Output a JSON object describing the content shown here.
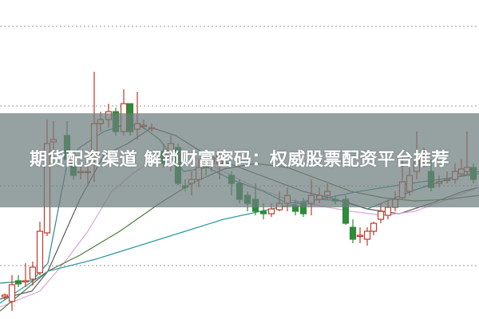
{
  "title": "期货配资渠道 解锁财富密码：权威股票配资平台推荐",
  "colors": {
    "up": "#c0392b",
    "down": "#2e8b3a",
    "grid": "#999999",
    "banner": "#6e7d7d"
  },
  "chart_data": {
    "type": "candlestick",
    "ylim": [
      0,
      400
    ],
    "grid": true,
    "gridlines": [
      367,
      267,
      167,
      67
    ],
    "candles": [
      {
        "x": 6,
        "o": 28,
        "c": 30,
        "h": 32,
        "l": 24
      },
      {
        "x": 15,
        "o": 22,
        "c": 43,
        "h": 55,
        "l": 10
      },
      {
        "x": 23,
        "o": 48,
        "c": 44,
        "h": 55,
        "l": 40
      },
      {
        "x": 32,
        "o": 48,
        "c": 48,
        "h": 70,
        "l": 40
      },
      {
        "x": 41,
        "o": 50,
        "c": 65,
        "h": 72,
        "l": 42
      },
      {
        "x": 50,
        "o": 58,
        "c": 110,
        "h": 122,
        "l": 55
      },
      {
        "x": 59,
        "o": 108,
        "c": 220,
        "h": 250,
        "l": 104
      },
      {
        "x": 67,
        "o": 222,
        "c": 225,
        "h": 248,
        "l": 200
      },
      {
        "x": 84,
        "o": 230,
        "c": 200,
        "h": 248,
        "l": 195
      },
      {
        "x": 92,
        "o": 197,
        "c": 180,
        "h": 205,
        "l": 175
      },
      {
        "x": 101,
        "o": 185,
        "c": 185,
        "h": 195,
        "l": 175
      },
      {
        "x": 110,
        "o": 185,
        "c": 185,
        "h": 200,
        "l": 170
      },
      {
        "x": 118,
        "o": 200,
        "c": 245,
        "h": 310,
        "l": 172
      },
      {
        "x": 126,
        "o": 245,
        "c": 250,
        "h": 260,
        "l": 235
      },
      {
        "x": 136,
        "o": 250,
        "c": 260,
        "h": 270,
        "l": 240
      },
      {
        "x": 145,
        "o": 260,
        "c": 235,
        "h": 265,
        "l": 230
      },
      {
        "x": 155,
        "o": 235,
        "c": 270,
        "h": 288,
        "l": 230
      },
      {
        "x": 163,
        "o": 270,
        "c": 235,
        "h": 270,
        "l": 230
      },
      {
        "x": 172,
        "o": 238,
        "c": 245,
        "h": 285,
        "l": 225
      },
      {
        "x": 180,
        "o": 243,
        "c": 243,
        "h": 250,
        "l": 238
      },
      {
        "x": 190,
        "o": 240,
        "c": 240,
        "h": 245,
        "l": 235
      },
      {
        "x": 205,
        "o": 210,
        "c": 195,
        "h": 220,
        "l": 190
      },
      {
        "x": 214,
        "o": 200,
        "c": 220,
        "h": 230,
        "l": 185
      },
      {
        "x": 223,
        "o": 215,
        "c": 170,
        "h": 220,
        "l": 168
      },
      {
        "x": 232,
        "o": 167,
        "c": 165,
        "h": 175,
        "l": 160
      },
      {
        "x": 240,
        "o": 170,
        "c": 175,
        "h": 185,
        "l": 155
      },
      {
        "x": 249,
        "o": 175,
        "c": 190,
        "h": 200,
        "l": 165
      },
      {
        "x": 258,
        "o": 195,
        "c": 190,
        "h": 210,
        "l": 180
      },
      {
        "x": 265,
        "o": 195,
        "c": 200,
        "h": 205,
        "l": 185
      },
      {
        "x": 275,
        "o": 195,
        "c": 205,
        "h": 210,
        "l": 175
      },
      {
        "x": 290,
        "o": 180,
        "c": 170,
        "h": 185,
        "l": 155
      },
      {
        "x": 300,
        "o": 170,
        "c": 150,
        "h": 175,
        "l": 145
      },
      {
        "x": 310,
        "o": 155,
        "c": 145,
        "h": 160,
        "l": 135
      },
      {
        "x": 320,
        "o": 150,
        "c": 135,
        "h": 170,
        "l": 130
      },
      {
        "x": 330,
        "o": 135,
        "c": 132,
        "h": 145,
        "l": 125
      },
      {
        "x": 340,
        "o": 132,
        "c": 138,
        "h": 145,
        "l": 128
      },
      {
        "x": 350,
        "o": 137,
        "c": 145,
        "h": 160,
        "l": 135
      },
      {
        "x": 360,
        "o": 145,
        "c": 155,
        "h": 165,
        "l": 135
      },
      {
        "x": 370,
        "o": 142,
        "c": 135,
        "h": 150,
        "l": 130
      },
      {
        "x": 380,
        "o": 145,
        "c": 132,
        "h": 152,
        "l": 128
      },
      {
        "x": 390,
        "o": 145,
        "c": 155,
        "h": 175,
        "l": 130
      },
      {
        "x": 400,
        "o": 150,
        "c": 155,
        "h": 165,
        "l": 145
      },
      {
        "x": 410,
        "o": 155,
        "c": 160,
        "h": 170,
        "l": 150
      },
      {
        "x": 420,
        "o": 150,
        "c": 148,
        "h": 155,
        "l": 144
      },
      {
        "x": 433,
        "o": 150,
        "c": 120,
        "h": 155,
        "l": 118
      },
      {
        "x": 442,
        "o": 115,
        "c": 100,
        "h": 125,
        "l": 95
      },
      {
        "x": 451,
        "o": 105,
        "c": 105,
        "h": 115,
        "l": 95
      },
      {
        "x": 460,
        "o": 100,
        "c": 110,
        "h": 115,
        "l": 92
      },
      {
        "x": 468,
        "o": 110,
        "c": 120,
        "h": 122,
        "l": 105
      },
      {
        "x": 477,
        "o": 125,
        "c": 135,
        "h": 145,
        "l": 120
      },
      {
        "x": 486,
        "o": 130,
        "c": 140,
        "h": 150,
        "l": 125
      },
      {
        "x": 495,
        "o": 140,
        "c": 150,
        "h": 160,
        "l": 135
      },
      {
        "x": 504,
        "o": 152,
        "c": 172,
        "h": 205,
        "l": 150
      },
      {
        "x": 513,
        "o": 160,
        "c": 180,
        "h": 190,
        "l": 155
      },
      {
        "x": 522,
        "o": 185,
        "c": 200,
        "h": 235,
        "l": 175
      },
      {
        "x": 531,
        "o": 195,
        "c": 205,
        "h": 215,
        "l": 190
      },
      {
        "x": 540,
        "o": 185,
        "c": 165,
        "h": 200,
        "l": 160
      },
      {
        "x": 550,
        "o": 170,
        "c": 172,
        "h": 180,
        "l": 165
      },
      {
        "x": 560,
        "o": 175,
        "c": 175,
        "h": 185,
        "l": 170
      },
      {
        "x": 570,
        "o": 175,
        "c": 185,
        "h": 195,
        "l": 170
      },
      {
        "x": 578,
        "o": 182,
        "c": 188,
        "h": 200,
        "l": 178
      },
      {
        "x": 585,
        "o": 185,
        "c": 190,
        "h": 235,
        "l": 180
      },
      {
        "x": 593,
        "o": 190,
        "c": 175,
        "h": 195,
        "l": 170
      }
    ],
    "series": [
      {
        "color": "#2a8a8a",
        "points": [
          [
            0,
            45
          ],
          [
            40,
            48
          ],
          [
            60,
            70
          ],
          [
            85,
            200
          ],
          [
            100,
            215
          ],
          [
            130,
            235
          ],
          [
            160,
            245
          ],
          [
            180,
            240
          ],
          [
            200,
            225
          ],
          [
            230,
            185
          ],
          [
            260,
            190
          ],
          [
            290,
            175
          ],
          [
            330,
            160
          ],
          [
            360,
            145
          ],
          [
            400,
            150
          ],
          [
            430,
            148
          ],
          [
            460,
            138
          ],
          [
            490,
            150
          ],
          [
            520,
            162
          ],
          [
            560,
            175
          ],
          [
            600,
            185
          ]
        ]
      },
      {
        "color": "#5a5a5a",
        "points": [
          [
            0,
            25
          ],
          [
            40,
            35
          ],
          [
            60,
            60
          ],
          [
            100,
            150
          ],
          [
            130,
            205
          ],
          [
            160,
            220
          ],
          [
            190,
            240
          ],
          [
            220,
            230
          ],
          [
            260,
            205
          ],
          [
            300,
            190
          ],
          [
            340,
            175
          ],
          [
            380,
            160
          ],
          [
            420,
            150
          ],
          [
            460,
            138
          ],
          [
            500,
            132
          ],
          [
            540,
            145
          ],
          [
            580,
            160
          ],
          [
            600,
            165
          ]
        ]
      },
      {
        "color": "#d9a6d9",
        "points": [
          [
            0,
            15
          ],
          [
            50,
            35
          ],
          [
            80,
            70
          ],
          [
            110,
            110
          ],
          [
            140,
            160
          ],
          [
            170,
            185
          ],
          [
            200,
            205
          ],
          [
            240,
            205
          ],
          [
            280,
            185
          ],
          [
            320,
            165
          ],
          [
            360,
            150
          ],
          [
            400,
            142
          ],
          [
            440,
            135
          ],
          [
            480,
            130
          ],
          [
            520,
            135
          ],
          [
            560,
            150
          ],
          [
            600,
            165
          ]
        ]
      },
      {
        "color": "#4f7a3a",
        "points": [
          [
            0,
            10
          ],
          [
            60,
            60
          ],
          [
            100,
            80
          ],
          [
            150,
            110
          ],
          [
            200,
            145
          ],
          [
            240,
            170
          ],
          [
            280,
            188
          ],
          [
            320,
            195
          ],
          [
            360,
            190
          ],
          [
            400,
            175
          ],
          [
            440,
            160
          ],
          [
            480,
            152
          ],
          [
            520,
            148
          ],
          [
            560,
            150
          ],
          [
            600,
            155
          ]
        ]
      },
      {
        "color": "#2f9aa0",
        "points": [
          [
            0,
            20
          ],
          [
            60,
            60
          ],
          [
            120,
            75
          ],
          [
            200,
            100
          ],
          [
            280,
            125
          ],
          [
            340,
            138
          ],
          [
            400,
            150
          ],
          [
            450,
            160
          ],
          [
            500,
            168
          ],
          [
            550,
            175
          ],
          [
            600,
            182
          ]
        ]
      }
    ]
  }
}
